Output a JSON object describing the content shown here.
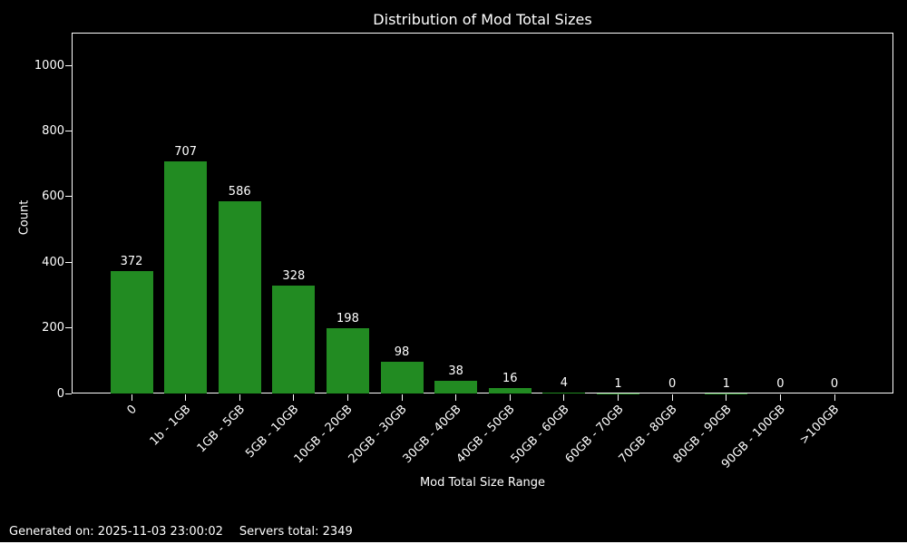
{
  "title": "Distribution of Mod Total Sizes",
  "footer": {
    "generated": "Generated on: 2025-11-03 23:00:02",
    "servers_total": "Servers total: 2349"
  },
  "chart_data": {
    "type": "bar",
    "title": "Distribution of Mod Total Sizes",
    "xlabel": "Mod Total Size Range",
    "ylabel": "Count",
    "categories": [
      "0",
      "1b - 1GB",
      "1GB - 5GB",
      "5GB - 10GB",
      "10GB - 20GB",
      "20GB - 30GB",
      "30GB - 40GB",
      "40GB - 50GB",
      "50GB - 60GB",
      "60GB - 70GB",
      "70GB - 80GB",
      "80GB - 90GB",
      "90GB - 100GB",
      ">100GB"
    ],
    "values": [
      372,
      707,
      586,
      328,
      198,
      98,
      38,
      16,
      4,
      1,
      0,
      1,
      0,
      0
    ],
    "bar_value_labels": [
      "372",
      "707",
      "586",
      "328",
      "198",
      "98",
      "38",
      "16",
      "4",
      "1",
      "0",
      "1",
      "0",
      "0"
    ],
    "y_ticks": [
      0,
      200,
      400,
      600,
      800,
      1000
    ],
    "ylim": [
      0,
      1100
    ],
    "x_tick_rotation_deg": 45,
    "grid": false,
    "legend": null,
    "colors": {
      "background": "#000000",
      "text": "#ffffff",
      "bar": "#228b22",
      "spine": "#ffffff"
    }
  }
}
